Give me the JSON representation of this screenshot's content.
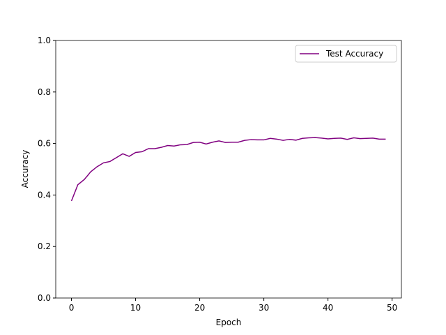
{
  "chart_data": {
    "type": "line",
    "x_label": "Epoch",
    "y_label": "Accuracy",
    "x": [
      0,
      1,
      2,
      3,
      4,
      5,
      6,
      7,
      8,
      9,
      10,
      11,
      12,
      13,
      14,
      15,
      16,
      17,
      18,
      19,
      20,
      21,
      22,
      23,
      24,
      25,
      26,
      27,
      28,
      29,
      30,
      31,
      32,
      33,
      34,
      35,
      36,
      37,
      38,
      39,
      40,
      41,
      42,
      43,
      44,
      45,
      46,
      47,
      48,
      49
    ],
    "series": [
      {
        "name": "Test Accuracy",
        "color": "#800080",
        "values": [
          0.377,
          0.44,
          0.46,
          0.49,
          0.51,
          0.525,
          0.53,
          0.545,
          0.56,
          0.55,
          0.565,
          0.568,
          0.58,
          0.58,
          0.585,
          0.592,
          0.59,
          0.595,
          0.596,
          0.604,
          0.605,
          0.598,
          0.605,
          0.61,
          0.604,
          0.605,
          0.605,
          0.612,
          0.615,
          0.614,
          0.614,
          0.62,
          0.617,
          0.612,
          0.616,
          0.613,
          0.62,
          0.622,
          0.623,
          0.621,
          0.618,
          0.62,
          0.621,
          0.616,
          0.622,
          0.619,
          0.62,
          0.621,
          0.617,
          0.617
        ]
      }
    ],
    "xlim": [
      -2.45,
      51.45
    ],
    "ylim": [
      0,
      1
    ],
    "xticks": [
      0,
      10,
      20,
      30,
      40,
      50
    ],
    "yticks": [
      {
        "value": 0,
        "label": "0.0"
      },
      0.2,
      0.4,
      0.6,
      0.8,
      {
        "value": 1,
        "label": "1.0"
      }
    ],
    "legend": "upper right"
  }
}
